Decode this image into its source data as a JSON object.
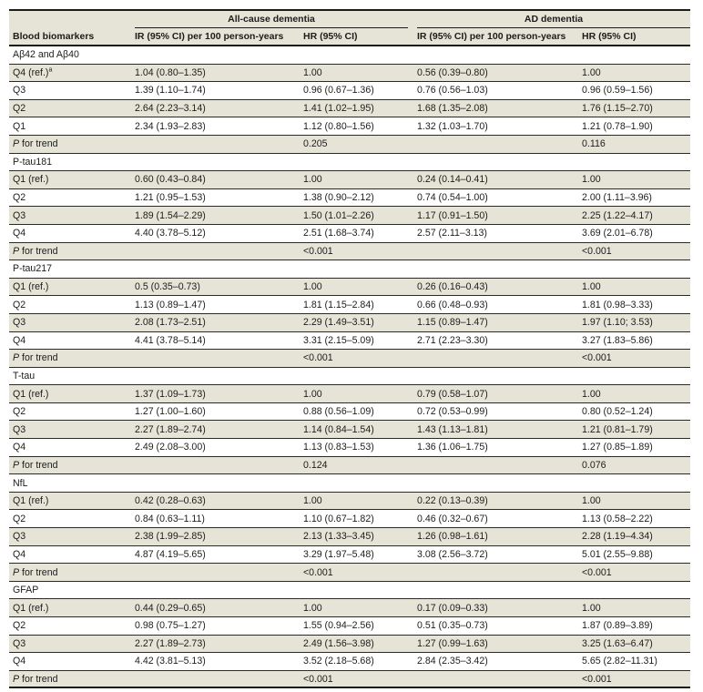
{
  "table": {
    "header": {
      "col1": "Blood biomarkers",
      "groups": [
        {
          "label": "All-cause dementia"
        },
        {
          "label": "AD dementia"
        }
      ],
      "columns": [
        "IR (95% CI) per 100 person-years",
        "HR (95% CI)",
        "IR (95% CI) per 100 person-years",
        "HR (95% CI)"
      ]
    },
    "sections": [
      {
        "title": "Aβ42 and Aβ40",
        "rows": [
          {
            "label": "Q4 (ref.)",
            "sup": "a",
            "cells": [
              "1.04 (0.80–1.35)",
              "1.00",
              "0.56 (0.39–0.80)",
              "1.00"
            ]
          },
          {
            "label": "Q3",
            "cells": [
              "1.39 (1.10–1.74)",
              "0.96 (0.67–1.36)",
              "0.76 (0.56–1.03)",
              "0.96 (0.59–1.56)"
            ]
          },
          {
            "label": "Q2",
            "cells": [
              "2.64 (2.23–3.14)",
              "1.41 (1.02–1.95)",
              "1.68 (1.35–2.08)",
              "1.76 (1.15–2.70)"
            ]
          },
          {
            "label": "Q1",
            "cells": [
              "2.34 (1.93–2.83)",
              "1.12 (0.80–1.56)",
              "1.32 (1.03–1.70)",
              "1.21 (0.78–1.90)"
            ]
          }
        ],
        "trend": {
          "label": "P for trend",
          "all_cause": "0.205",
          "ad": "0.116"
        }
      },
      {
        "title": "P-tau181",
        "rows": [
          {
            "label": "Q1 (ref.)",
            "cells": [
              "0.60 (0.43–0.84)",
              "1.00",
              "0.24 (0.14–0.41)",
              "1.00"
            ]
          },
          {
            "label": "Q2",
            "cells": [
              "1.21 (0.95–1.53)",
              "1.38 (0.90–2.12)",
              "0.74 (0.54–1.00)",
              "2.00 (1.11–3.96)"
            ]
          },
          {
            "label": "Q3",
            "cells": [
              "1.89 (1.54–2.29)",
              "1.50 (1.01–2.26)",
              "1.17 (0.91–1.50)",
              "2.25 (1.22–4.17)"
            ]
          },
          {
            "label": "Q4",
            "cells": [
              "4.40 (3.78–5.12)",
              "2.51 (1.68–3.74)",
              "2.57 (2.11–3.13)",
              "3.69 (2.01–6.78)"
            ]
          }
        ],
        "trend": {
          "label": "P for trend",
          "all_cause": "<0.001",
          "ad": "<0.001"
        }
      },
      {
        "title": "P-tau217",
        "rows": [
          {
            "label": "Q1 (ref.)",
            "cells": [
              "0.5 (0.35–0.73)",
              "1.00",
              "0.26 (0.16–0.43)",
              "1.00"
            ]
          },
          {
            "label": "Q2",
            "cells": [
              "1.13 (0.89–1.47)",
              "1.81 (1.15–2.84)",
              "0.66 (0.48–0.93)",
              "1.81 (0.98–3.33)"
            ]
          },
          {
            "label": "Q3",
            "cells": [
              "2.08 (1.73–2.51)",
              "2.29 (1.49–3.51)",
              "1.15 (0.89–1.47)",
              "1.97 (1.10; 3.53)"
            ]
          },
          {
            "label": "Q4",
            "cells": [
              "4.41 (3.78–5.14)",
              "3.31 (2.15–5.09)",
              "2.71 (2.23–3.30)",
              "3.27 (1.83–5.86)"
            ]
          }
        ],
        "trend": {
          "label": "P for trend",
          "all_cause": "<0.001",
          "ad": "<0.001"
        }
      },
      {
        "title": "T-tau",
        "rows": [
          {
            "label": "Q1 (ref.)",
            "cells": [
              "1.37 (1.09–1.73)",
              "1.00",
              "0.79 (0.58–1.07)",
              "1.00"
            ]
          },
          {
            "label": "Q2",
            "cells": [
              "1.27 (1.00–1.60)",
              "0.88 (0.56–1.09)",
              "0.72 (0.53–0.99)",
              "0.80 (0.52–1.24)"
            ]
          },
          {
            "label": "Q3",
            "cells": [
              "2.27 (1.89–2.74)",
              "1.14 (0.84–1.54)",
              "1.43 (1.13–1.81)",
              "1.21 (0.81–1.79)"
            ]
          },
          {
            "label": "Q4",
            "cells": [
              "2.49 (2.08–3.00)",
              "1.13 (0.83–1.53)",
              "1.36 (1.06–1.75)",
              "1.27 (0.85–1.89)"
            ]
          }
        ],
        "trend": {
          "label": "P for trend",
          "all_cause": "0.124",
          "ad": "0.076"
        }
      },
      {
        "title": "NfL",
        "rows": [
          {
            "label": "Q1 (ref.)",
            "cells": [
              "0.42 (0.28–0.63)",
              "1.00",
              "0.22 (0.13–0.39)",
              "1.00"
            ]
          },
          {
            "label": "Q2",
            "cells": [
              "0.84 (0.63–1.11)",
              "1.10 (0.67–1.82)",
              "0.46 (0.32–0.67)",
              "1.13 (0.58–2.22)"
            ]
          },
          {
            "label": "Q3",
            "cells": [
              "2.38 (1.99–2.85)",
              "2.13 (1.33–3.45)",
              "1.26 (0.98–1.61)",
              "2.28 (1.19–4.34)"
            ]
          },
          {
            "label": "Q4",
            "cells": [
              "4.87 (4.19–5.65)",
              "3.29 (1.97–5.48)",
              "3.08 (2.56–3.72)",
              "5.01 (2.55–9.88)"
            ]
          }
        ],
        "trend": {
          "label": "P for trend",
          "all_cause": "<0.001",
          "ad": "<0.001"
        }
      },
      {
        "title": "GFAP",
        "rows": [
          {
            "label": "Q1 (ref.)",
            "cells": [
              "0.44 (0.29–0.65)",
              "1.00",
              "0.17 (0.09–0.33)",
              "1.00"
            ]
          },
          {
            "label": "Q2",
            "cells": [
              "0.98 (0.75–1.27)",
              "1.55 (0.94–2.56)",
              "0.51 (0.35–0.73)",
              "1.87 (0.89–3.89)"
            ]
          },
          {
            "label": "Q3",
            "cells": [
              "2.27 (1.89–2.73)",
              "2.49 (1.56–3.98)",
              "1.27 (0.99–1.63)",
              "3.25 (1.63–6.47)"
            ]
          },
          {
            "label": "Q4",
            "cells": [
              "4.42 (3.81–5.13)",
              "3.52 (2.18–5.68)",
              "2.84 (2.35–3.42)",
              "5.65 (2.82–11.31)"
            ]
          }
        ],
        "trend": {
          "label": "P for trend",
          "all_cause": "<0.001",
          "ad": "<0.001"
        }
      }
    ]
  },
  "colors": {
    "stripe_beige": "#e6e3d7",
    "rule_dark": "#1c1c19",
    "text": "#1c1c19",
    "row_white": "#ffffff"
  }
}
